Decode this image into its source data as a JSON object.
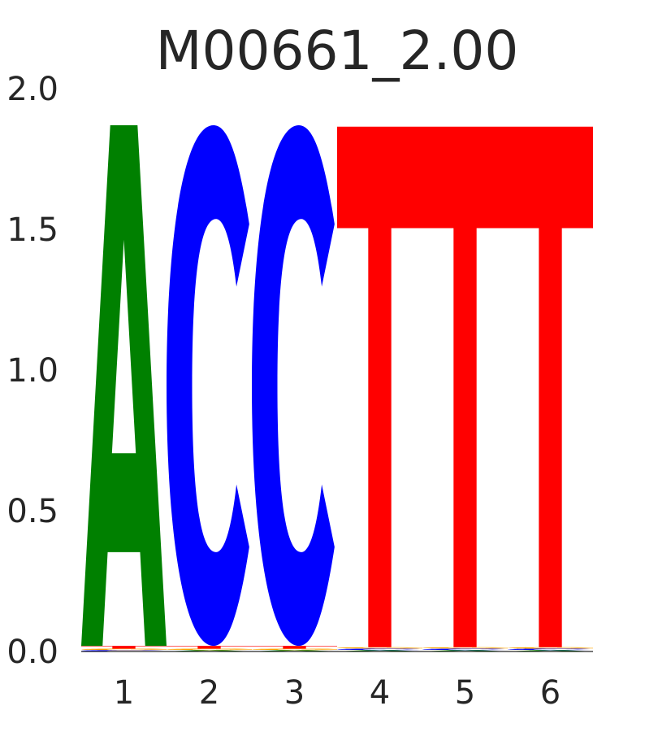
{
  "chart_data": {
    "type": "sequence-logo",
    "title": "M00661_2.00",
    "xlabel": "",
    "ylabel": "",
    "ylim": [
      0,
      2.0
    ],
    "y_ticks": [
      "0.0",
      "0.5",
      "1.0",
      "1.5",
      "2.0"
    ],
    "y_tick_values": [
      0,
      0.5,
      1.0,
      1.5,
      2.0
    ],
    "positions": [
      "1",
      "2",
      "3",
      "4",
      "5",
      "6"
    ],
    "grid": false,
    "letter_colors": {
      "A": "#008000",
      "C": "#0000ff",
      "G": "#ffa500",
      "T": "#ff0000"
    },
    "columns": [
      {
        "position": "1",
        "letters": [
          {
            "base": "C",
            "bits": 0.005
          },
          {
            "base": "G",
            "bits": 0.005
          },
          {
            "base": "T",
            "bits": 0.01
          },
          {
            "base": "A",
            "bits": 1.85
          }
        ]
      },
      {
        "position": "2",
        "letters": [
          {
            "base": "A",
            "bits": 0.005
          },
          {
            "base": "G",
            "bits": 0.005
          },
          {
            "base": "T",
            "bits": 0.01
          },
          {
            "base": "C",
            "bits": 1.85
          }
        ]
      },
      {
        "position": "3",
        "letters": [
          {
            "base": "A",
            "bits": 0.005
          },
          {
            "base": "G",
            "bits": 0.005
          },
          {
            "base": "T",
            "bits": 0.01
          },
          {
            "base": "C",
            "bits": 1.85
          }
        ]
      },
      {
        "position": "4",
        "letters": [
          {
            "base": "A",
            "bits": 0.005
          },
          {
            "base": "C",
            "bits": 0.005
          },
          {
            "base": "G",
            "bits": 0.005
          },
          {
            "base": "T",
            "bits": 1.85
          }
        ]
      },
      {
        "position": "5",
        "letters": [
          {
            "base": "A",
            "bits": 0.005
          },
          {
            "base": "C",
            "bits": 0.005
          },
          {
            "base": "G",
            "bits": 0.005
          },
          {
            "base": "T",
            "bits": 1.85
          }
        ]
      },
      {
        "position": "6",
        "letters": [
          {
            "base": "A",
            "bits": 0.005
          },
          {
            "base": "C",
            "bits": 0.005
          },
          {
            "base": "G",
            "bits": 0.005
          },
          {
            "base": "T",
            "bits": 1.85
          }
        ]
      }
    ]
  }
}
